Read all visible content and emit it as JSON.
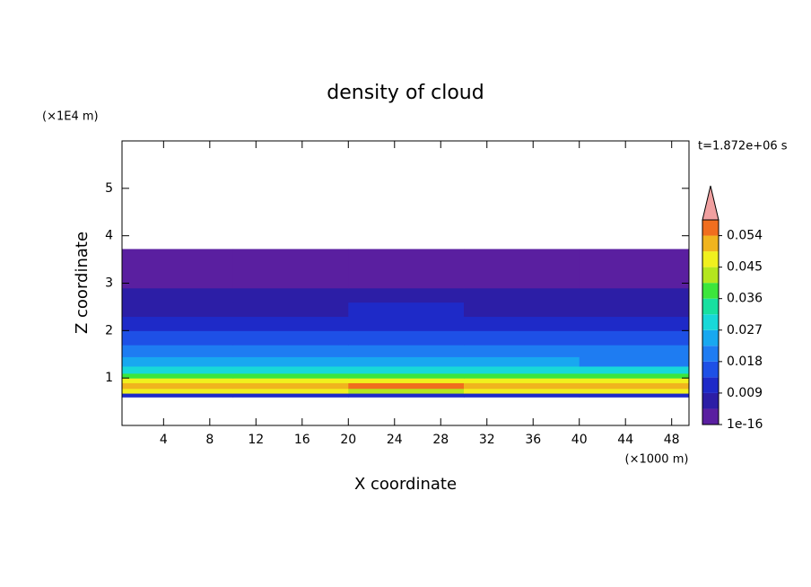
{
  "chart_data": {
    "type": "contour",
    "title": "density of cloud",
    "xlabel": "X coordinate",
    "ylabel": "Z coordinate",
    "xunit": "(×1000 m)",
    "yunit": "(×1E4 m)",
    "time_label": "t=1.872e+06 s",
    "xlim": [
      0.4,
      49.5
    ],
    "ylim": [
      0,
      6
    ],
    "xticks": [
      4,
      8,
      12,
      16,
      20,
      24,
      28,
      32,
      36,
      40,
      44,
      48
    ],
    "yticks": [
      1,
      2,
      3,
      4,
      5
    ],
    "x_edges": [
      0.4,
      10,
      20,
      30,
      40,
      49.5
    ],
    "z_edges": [
      0.6,
      0.68,
      0.78,
      0.9,
      1.0,
      1.1,
      1.25,
      1.45,
      1.7,
      2.0,
      2.3,
      2.6,
      2.9,
      3.72
    ],
    "values": [
      [
        0.012,
        0.013,
        0.012,
        0.012,
        0.013
      ],
      [
        0.045,
        0.047,
        0.044,
        0.046,
        0.045
      ],
      [
        0.053,
        0.051,
        0.054,
        0.052,
        0.053
      ],
      [
        0.048,
        0.046,
        0.049,
        0.047,
        0.048
      ],
      [
        0.038,
        0.036,
        0.039,
        0.037,
        0.036
      ],
      [
        0.03,
        0.028,
        0.031,
        0.029,
        0.028
      ],
      [
        0.024,
        0.023,
        0.025,
        0.023,
        0.022
      ],
      [
        0.02,
        0.019,
        0.021,
        0.019,
        0.018
      ],
      [
        0.016,
        0.015,
        0.017,
        0.015,
        0.014
      ],
      [
        0.012,
        0.011,
        0.012,
        0.011,
        0.011
      ],
      [
        0.008,
        0.008,
        0.009,
        0.007,
        0.008
      ],
      [
        0.005,
        0.006,
        0.005,
        0.005,
        0.006
      ],
      [
        0.002,
        0.002,
        0.002,
        0.002,
        0.002
      ]
    ],
    "clim": [
      1e-16,
      0.0585
    ],
    "level_step": 0.0045,
    "colors": [
      "#5a1fa0",
      "#2c1ea6",
      "#1e2ac8",
      "#1e50e6",
      "#1e7cf2",
      "#18a8f0",
      "#18d8d8",
      "#18e0a0",
      "#3ce63c",
      "#b4e61e",
      "#f0f01e",
      "#f0b41e",
      "#f06e1e"
    ],
    "extend_color": "#f0a0a0",
    "cbar_ticks": [
      1e-16,
      0.009,
      0.018,
      0.027,
      0.036,
      0.045,
      0.054
    ]
  }
}
